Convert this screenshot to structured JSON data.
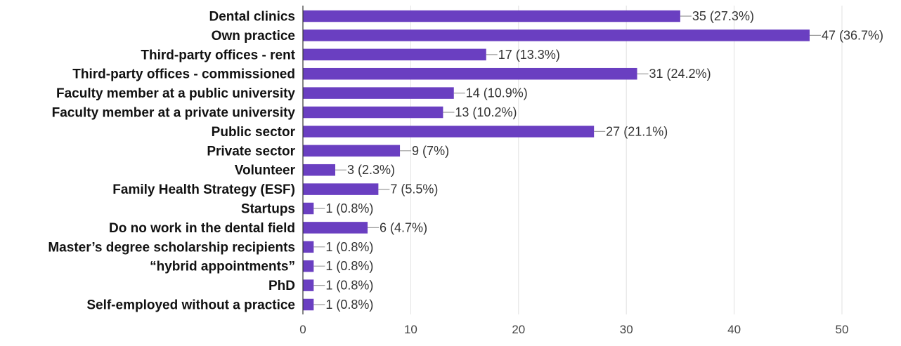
{
  "chart_data": {
    "type": "bar",
    "orientation": "horizontal",
    "categories": [
      "Dental clinics",
      "Own practice",
      "Third-party offices - rent",
      "Third-party offices - commissioned",
      "Faculty member at a public university",
      "Faculty member at a private university",
      "Public sector",
      "Private sector",
      "Volunteer",
      "Family Health Strategy (ESF)",
      "Startups",
      "Do no work in the dental field",
      "Master’s degree scholarship recipients",
      "“hybrid appointments”",
      "PhD",
      "Self-employed without a practice"
    ],
    "values": [
      35,
      47,
      17,
      31,
      14,
      13,
      27,
      9,
      3,
      7,
      1,
      6,
      1,
      1,
      1,
      1
    ],
    "data_labels": [
      "35 (27.3%)",
      "47 (36.7%)",
      "17 (13.3%)",
      "31 (24.2%)",
      "14 (10.9%)",
      "13 (10.2%)",
      "27 (21.1%)",
      "9 (7%)",
      "3 (2.3%)",
      "7 (5.5%)",
      "1 (0.8%)",
      "6 (4.7%)",
      "1 (0.8%)",
      "1 (0.8%)",
      "1 (0.8%)",
      "1 (0.8%)"
    ],
    "xlim": [
      0,
      50
    ],
    "xticks": [
      0,
      10,
      20,
      30,
      40,
      50
    ],
    "title": "",
    "xlabel": "",
    "ylabel": "",
    "grid": true,
    "bar_color": "#6a3fc1"
  }
}
